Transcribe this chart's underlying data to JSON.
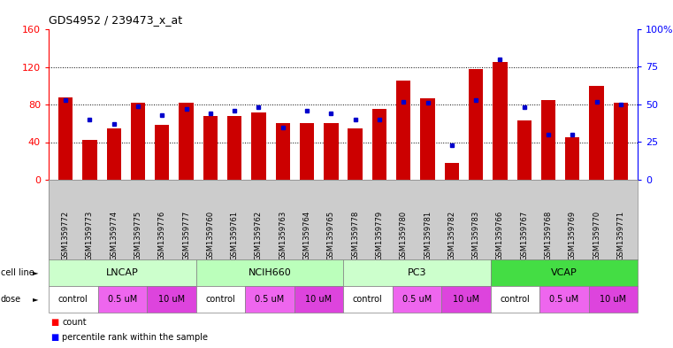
{
  "title": "GDS4952 / 239473_x_at",
  "samples": [
    "GSM1359772",
    "GSM1359773",
    "GSM1359774",
    "GSM1359775",
    "GSM1359776",
    "GSM1359777",
    "GSM1359760",
    "GSM1359761",
    "GSM1359762",
    "GSM1359763",
    "GSM1359764",
    "GSM1359765",
    "GSM1359778",
    "GSM1359779",
    "GSM1359780",
    "GSM1359781",
    "GSM1359782",
    "GSM1359783",
    "GSM1359766",
    "GSM1359767",
    "GSM1359768",
    "GSM1359769",
    "GSM1359770",
    "GSM1359771"
  ],
  "counts": [
    88,
    42,
    55,
    82,
    58,
    82,
    68,
    68,
    72,
    60,
    60,
    60,
    55,
    75,
    105,
    87,
    18,
    118,
    125,
    63,
    85,
    45,
    100,
    82
  ],
  "percentile_ranks": [
    53,
    40,
    37,
    49,
    43,
    47,
    44,
    46,
    48,
    35,
    46,
    44,
    40,
    40,
    52,
    51,
    23,
    53,
    80,
    48,
    30,
    30,
    52,
    50
  ],
  "cell_lines": [
    {
      "name": "LNCAP",
      "start": 0,
      "end": 6,
      "color": "#ccffcc"
    },
    {
      "name": "NCIH660",
      "start": 6,
      "end": 12,
      "color": "#bbffbb"
    },
    {
      "name": "PC3",
      "start": 12,
      "end": 18,
      "color": "#ccffcc"
    },
    {
      "name": "VCAP",
      "start": 18,
      "end": 24,
      "color": "#44dd44"
    }
  ],
  "doses": [
    {
      "label": "control",
      "start": 0,
      "end": 2,
      "color": "#ffffff"
    },
    {
      "label": "0.5 uM",
      "start": 2,
      "end": 4,
      "color": "#ee66ee"
    },
    {
      "label": "10 uM",
      "start": 4,
      "end": 6,
      "color": "#dd44dd"
    },
    {
      "label": "control",
      "start": 6,
      "end": 8,
      "color": "#ffffff"
    },
    {
      "label": "0.5 uM",
      "start": 8,
      "end": 10,
      "color": "#ee66ee"
    },
    {
      "label": "10 uM",
      "start": 10,
      "end": 12,
      "color": "#dd44dd"
    },
    {
      "label": "control",
      "start": 12,
      "end": 14,
      "color": "#ffffff"
    },
    {
      "label": "0.5 uM",
      "start": 14,
      "end": 16,
      "color": "#ee66ee"
    },
    {
      "label": "10 uM",
      "start": 16,
      "end": 18,
      "color": "#dd44dd"
    },
    {
      "label": "control",
      "start": 18,
      "end": 20,
      "color": "#ffffff"
    },
    {
      "label": "0.5 uM",
      "start": 20,
      "end": 22,
      "color": "#ee66ee"
    },
    {
      "label": "10 uM",
      "start": 22,
      "end": 24,
      "color": "#dd44dd"
    }
  ],
  "bar_color": "#cc0000",
  "marker_color": "#0000cc",
  "left_ylim": [
    0,
    160
  ],
  "right_ylim": [
    0,
    100
  ],
  "left_yticks": [
    0,
    40,
    80,
    120,
    160
  ],
  "right_yticks": [
    0,
    25,
    50,
    75,
    100
  ],
  "right_yticklabels": [
    "0",
    "25",
    "50",
    "75",
    "100%"
  ],
  "grid_values": [
    40,
    80,
    120
  ],
  "background_color": "#ffffff",
  "xticklabel_bg": "#cccccc"
}
